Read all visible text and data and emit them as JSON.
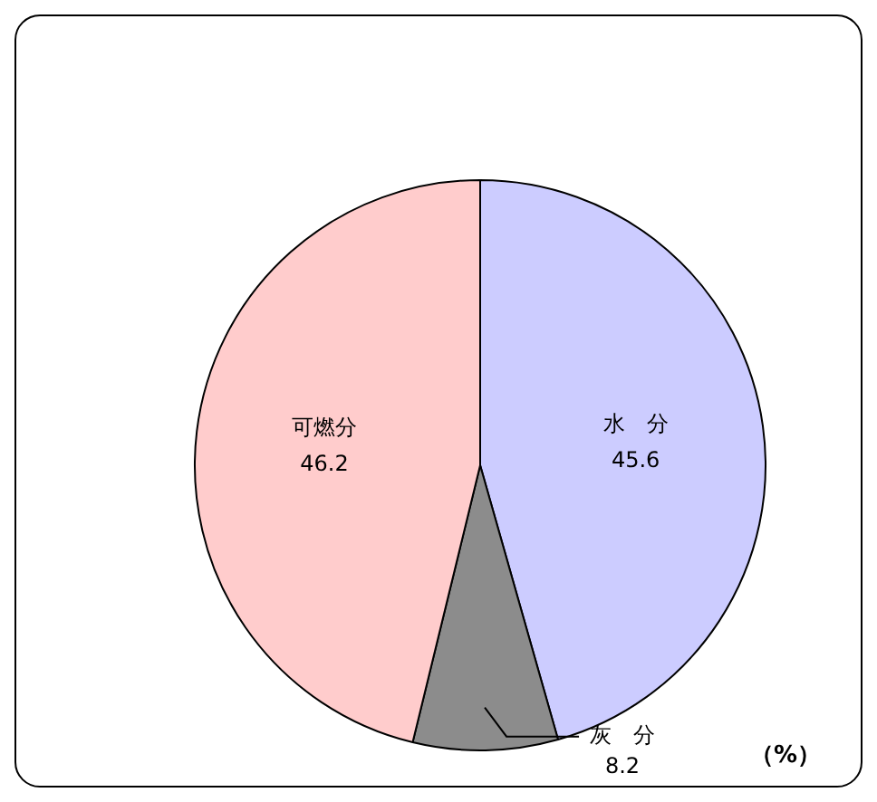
{
  "chart_data": {
    "type": "pie",
    "categories": [
      "水　分",
      "灰　分",
      "可燃分"
    ],
    "values": [
      45.6,
      8.2,
      46.2
    ],
    "colors": [
      "#ccccff",
      "#8c8c8c",
      "#ffcccc"
    ],
    "data_labels": true,
    "legend": false,
    "annotations": [
      "（%）"
    ]
  }
}
